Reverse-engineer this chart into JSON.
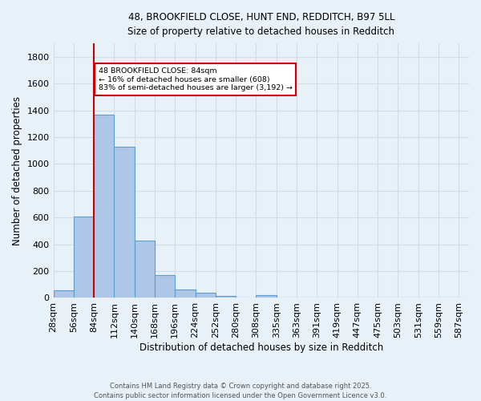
{
  "title_line1": "48, BROOKFIELD CLOSE, HUNT END, REDDITCH, B97 5LL",
  "title_line2": "Size of property relative to detached houses in Redditch",
  "xlabel": "Distribution of detached houses by size in Redditch",
  "ylabel": "Number of detached properties",
  "bar_values": [
    55,
    608,
    1365,
    1127,
    425,
    172,
    65,
    38,
    12,
    0,
    18,
    0,
    0,
    0,
    0,
    0,
    0,
    0,
    0,
    0
  ],
  "categories": [
    "28sqm",
    "56sqm",
    "84sqm",
    "112sqm",
    "140sqm",
    "168sqm",
    "196sqm",
    "224sqm",
    "252sqm",
    "280sqm",
    "308sqm",
    "335sqm",
    "363sqm",
    "391sqm",
    "419sqm",
    "447sqm",
    "475sqm",
    "503sqm",
    "531sqm",
    "559sqm",
    "587sqm"
  ],
  "bar_color": "#aec6e8",
  "bar_edge_color": "#5a9fd4",
  "bg_color": "#e8f0f8",
  "grid_color": "#d0dce8",
  "red_line_x": 84,
  "bin_width": 28,
  "annotation_text": "48 BROOKFIELD CLOSE: 84sqm\n← 16% of detached houses are smaller (608)\n83% of semi-detached houses are larger (3,192) →",
  "annotation_box_color": "#ffffff",
  "annotation_box_edge_color": "#cc0000",
  "ylim": [
    0,
    1900
  ],
  "yticks": [
    0,
    200,
    400,
    600,
    800,
    1000,
    1200,
    1400,
    1600,
    1800
  ],
  "footer_line1": "Contains HM Land Registry data © Crown copyright and database right 2025.",
  "footer_line2": "Contains public sector information licensed under the Open Government Licence v3.0."
}
